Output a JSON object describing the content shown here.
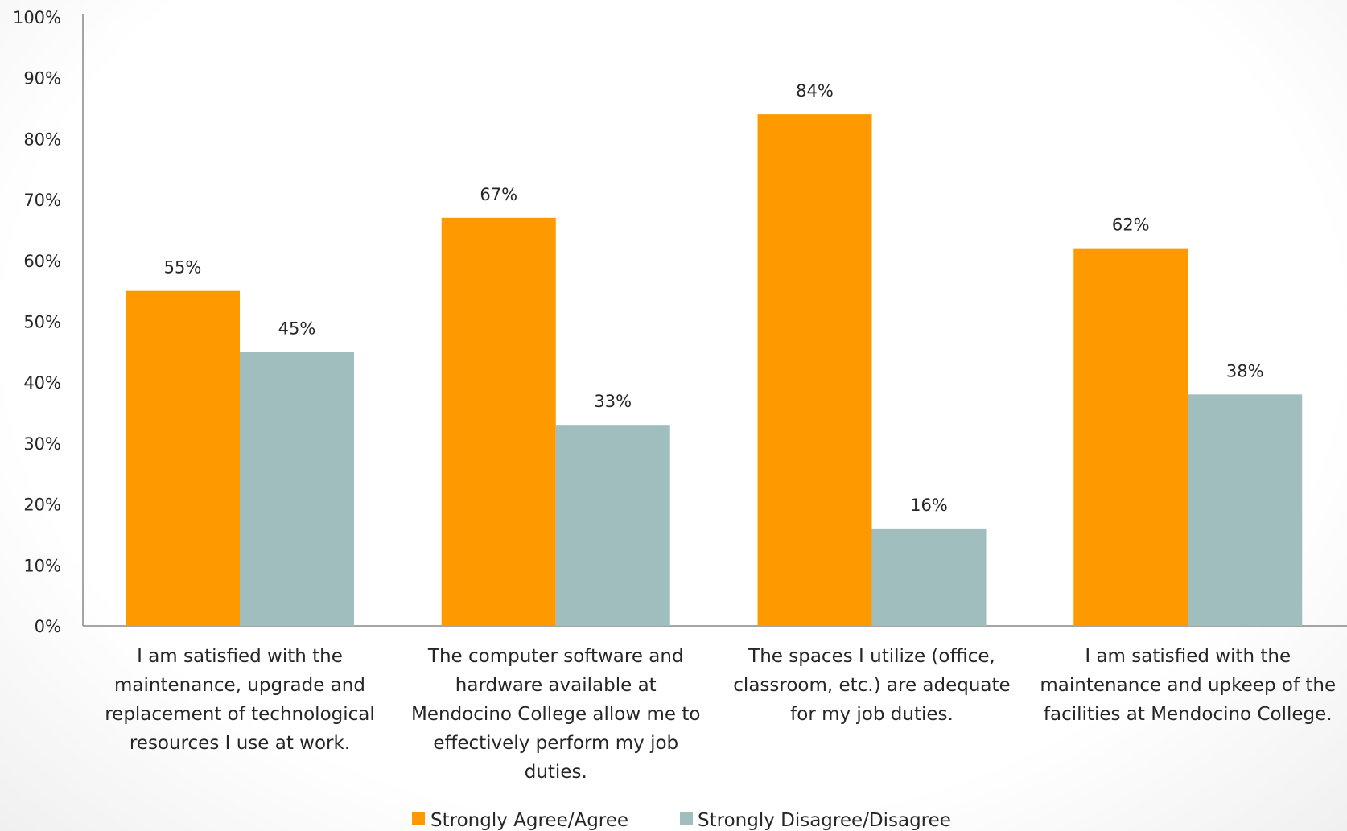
{
  "chart_data": {
    "type": "bar",
    "categories": [
      [
        "I am satisfied with the",
        "maintenance, upgrade and",
        "replacement of technological",
        "resources I use at work."
      ],
      [
        "The computer software and",
        "hardware available at",
        "Mendocino College allow me to",
        "effectively perform my job",
        "duties."
      ],
      [
        "The spaces I utilize (office,",
        "classroom, etc.) are adequate",
        "for my job duties."
      ],
      [
        "I am satisfied with the",
        "maintenance and upkeep of the",
        "facilities at Mendocino College."
      ]
    ],
    "series": [
      {
        "name": "Strongly Agree/Agree",
        "values": [
          55,
          67,
          84,
          62
        ],
        "labels": [
          "55%",
          "67%",
          "84%",
          "62%"
        ],
        "color": "#FF9900"
      },
      {
        "name": "Strongly Disagree/Disagree",
        "values": [
          45,
          33,
          16,
          38
        ],
        "labels": [
          "45%",
          "33%",
          "16%",
          "38%"
        ],
        "color": "#9FBEBD"
      }
    ],
    "ylim": [
      0,
      100
    ],
    "yticks": [
      "0%",
      "10%",
      "20%",
      "30%",
      "40%",
      "50%",
      "60%",
      "70%",
      "80%",
      "90%",
      "100%"
    ],
    "grid": false,
    "legend": "bottom",
    "title": "",
    "xlabel": "",
    "ylabel": ""
  }
}
